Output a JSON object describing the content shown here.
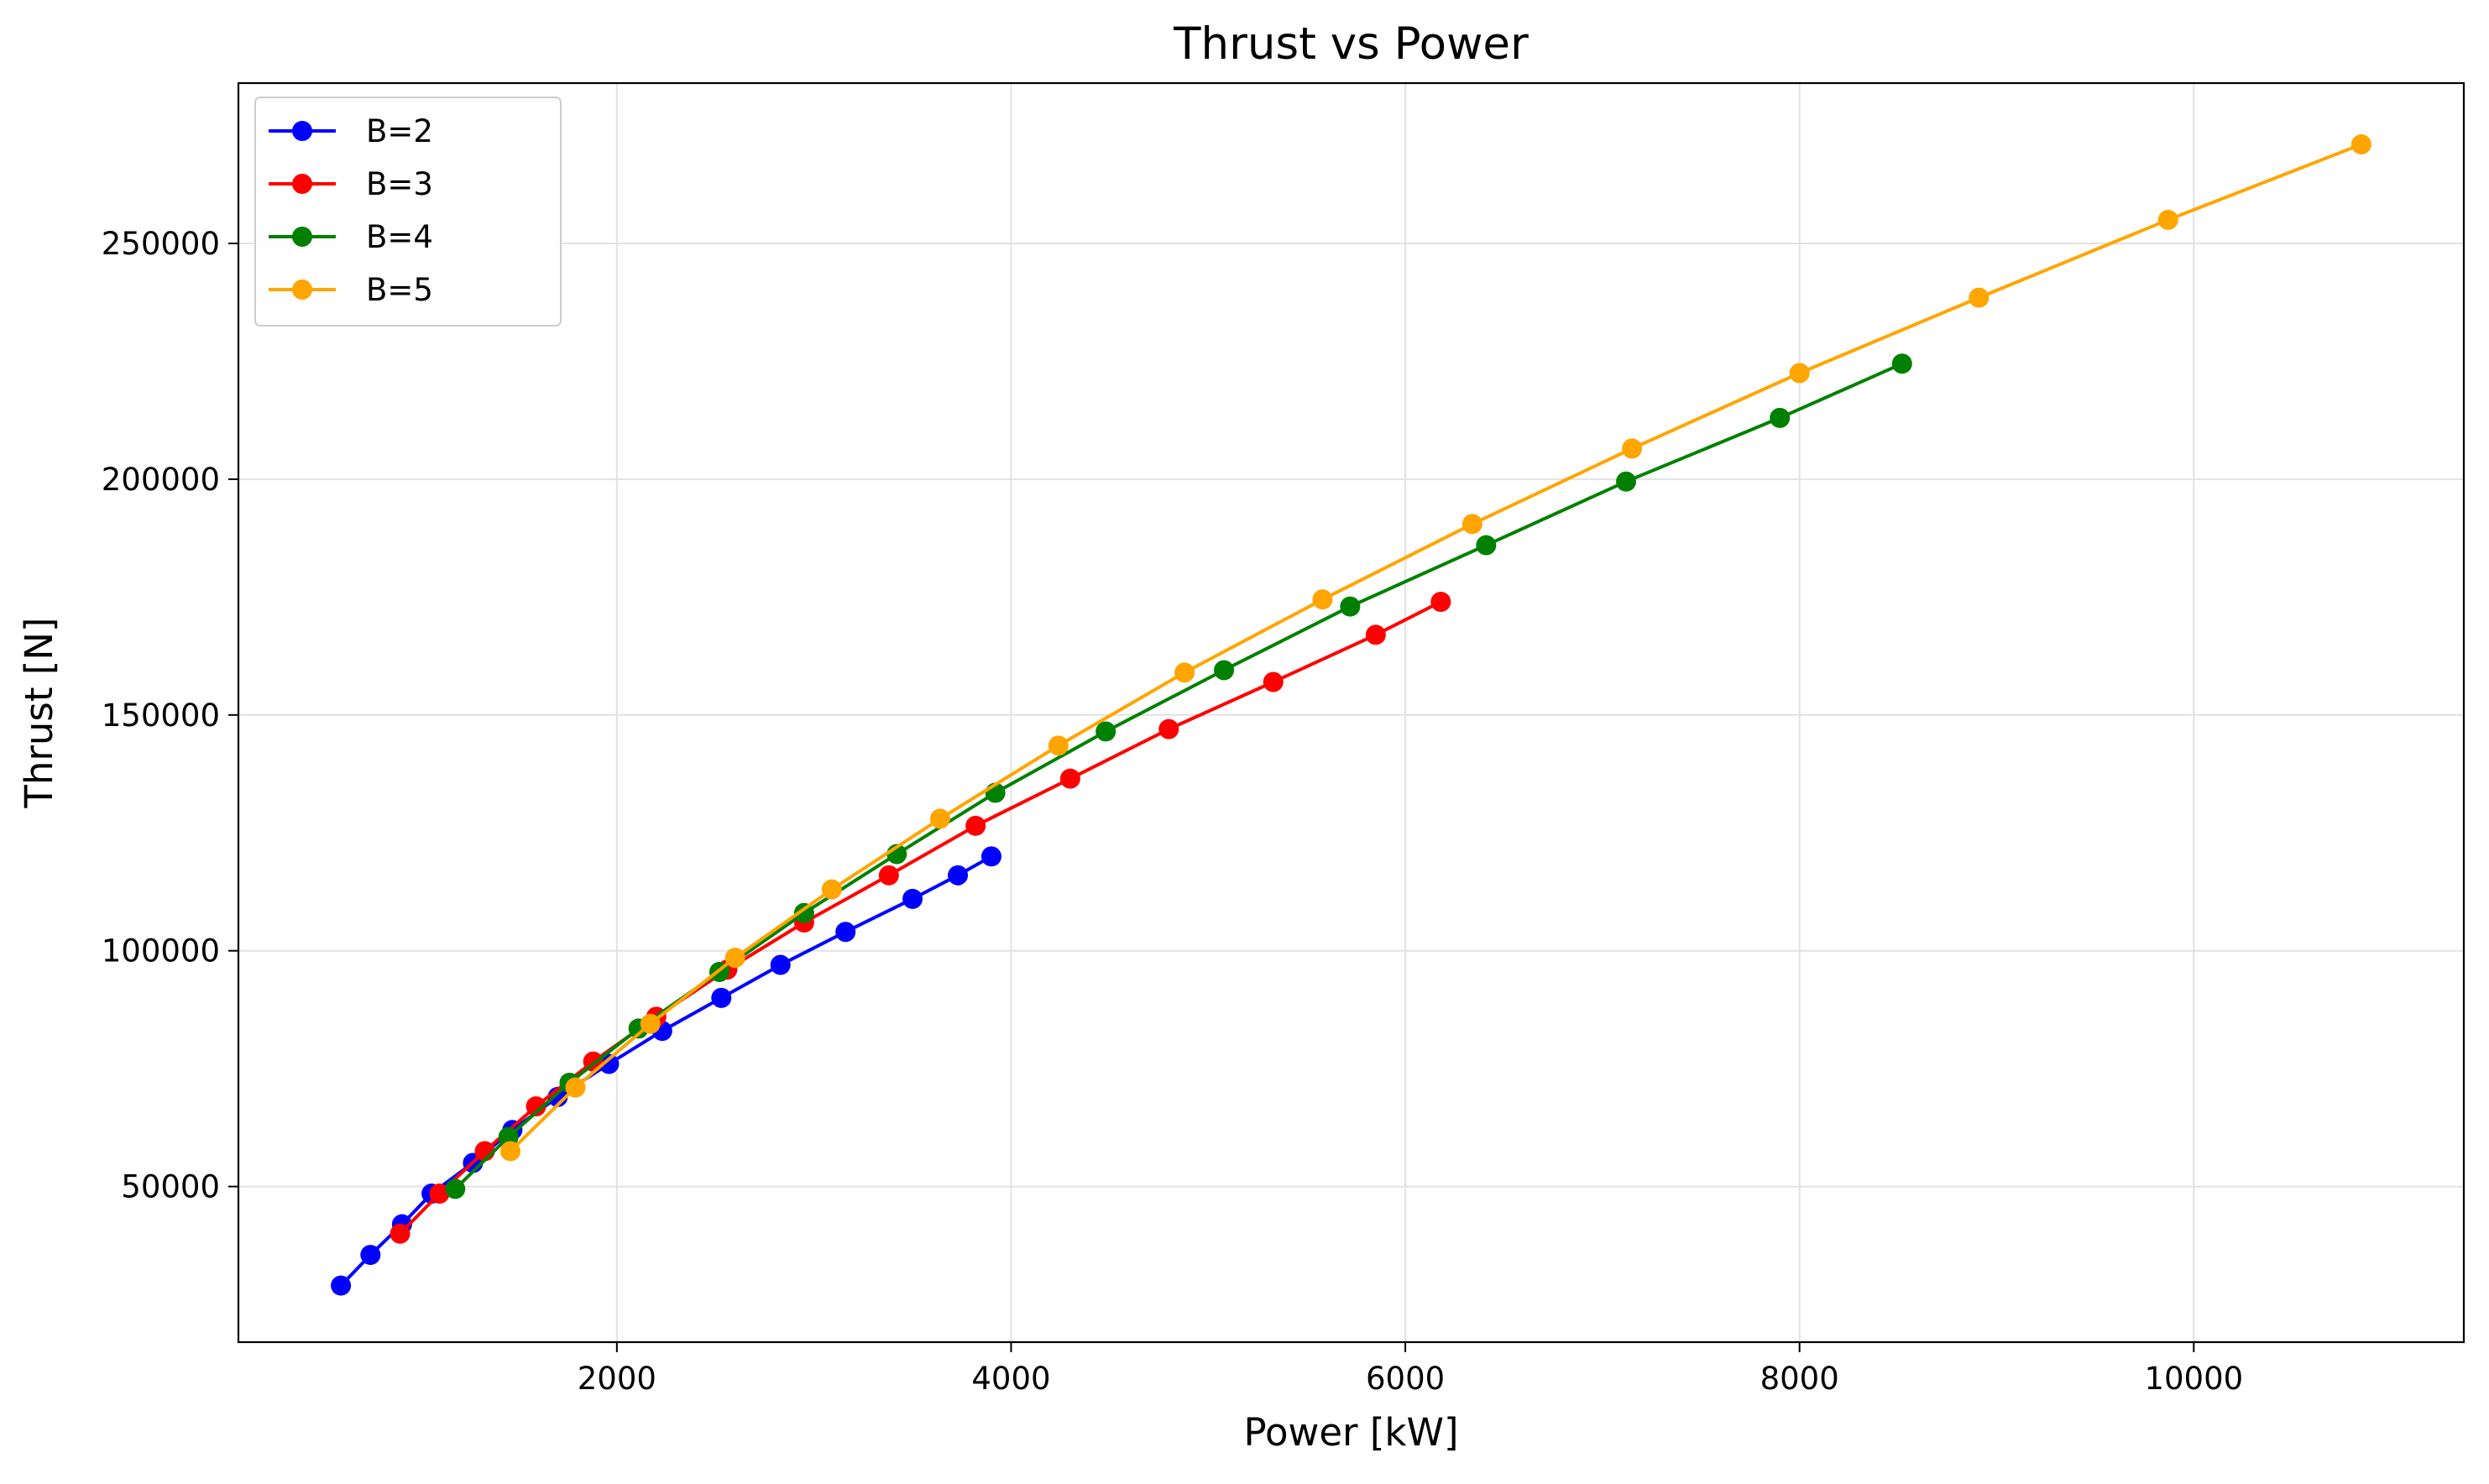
{
  "chart_data": {
    "type": "line",
    "title": "Thrust vs Power",
    "xlabel": "Power [kW]",
    "ylabel": "Thrust [N]",
    "xlim": [
      80,
      11370
    ],
    "ylim": [
      17000,
      284000
    ],
    "x_ticks": [
      2000,
      4000,
      6000,
      8000,
      10000
    ],
    "y_ticks": [
      50000,
      100000,
      150000,
      200000,
      250000
    ],
    "grid": true,
    "legend_position": "upper-left",
    "series": [
      {
        "name": "B=2",
        "color": "#0000ff",
        "points": [
          [
            600,
            29000
          ],
          [
            750,
            35500
          ],
          [
            910,
            42000
          ],
          [
            1060,
            48500
          ],
          [
            1270,
            55000
          ],
          [
            1470,
            62000
          ],
          [
            1700,
            69000
          ],
          [
            1960,
            76000
          ],
          [
            2230,
            83000
          ],
          [
            2530,
            90000
          ],
          [
            2830,
            97000
          ],
          [
            3160,
            104000
          ],
          [
            3500,
            111000
          ],
          [
            3730,
            116000
          ],
          [
            3900,
            120000
          ]
        ]
      },
      {
        "name": "B=3",
        "color": "#ff0000",
        "points": [
          [
            900,
            40000
          ],
          [
            1100,
            48500
          ],
          [
            1330,
            57500
          ],
          [
            1590,
            67000
          ],
          [
            1880,
            76500
          ],
          [
            2200,
            86000
          ],
          [
            2560,
            96000
          ],
          [
            2950,
            106000
          ],
          [
            3380,
            116000
          ],
          [
            3820,
            126500
          ],
          [
            4300,
            136500
          ],
          [
            4800,
            147000
          ],
          [
            5330,
            157000
          ],
          [
            5850,
            167000
          ],
          [
            6180,
            174000
          ]
        ]
      },
      {
        "name": "B=4",
        "color": "#008000",
        "points": [
          [
            1180,
            49500
          ],
          [
            1450,
            60500
          ],
          [
            1760,
            72000
          ],
          [
            2110,
            83500
          ],
          [
            2520,
            95500
          ],
          [
            2950,
            108000
          ],
          [
            3420,
            120500
          ],
          [
            3920,
            133500
          ],
          [
            4480,
            146500
          ],
          [
            5080,
            159500
          ],
          [
            5720,
            173000
          ],
          [
            6410,
            186000
          ],
          [
            7120,
            199500
          ],
          [
            7900,
            213000
          ],
          [
            8520,
            224500
          ]
        ]
      },
      {
        "name": "B=5",
        "color": "#ffa500",
        "points": [
          [
            1460,
            57500
          ],
          [
            1790,
            71000
          ],
          [
            2170,
            84500
          ],
          [
            2600,
            98500
          ],
          [
            3090,
            113000
          ],
          [
            3640,
            128000
          ],
          [
            4240,
            143500
          ],
          [
            4880,
            159000
          ],
          [
            5580,
            174500
          ],
          [
            6340,
            190500
          ],
          [
            7150,
            206500
          ],
          [
            8000,
            222500
          ],
          [
            8910,
            238500
          ],
          [
            9870,
            255000
          ],
          [
            10850,
            271000
          ]
        ]
      }
    ]
  }
}
